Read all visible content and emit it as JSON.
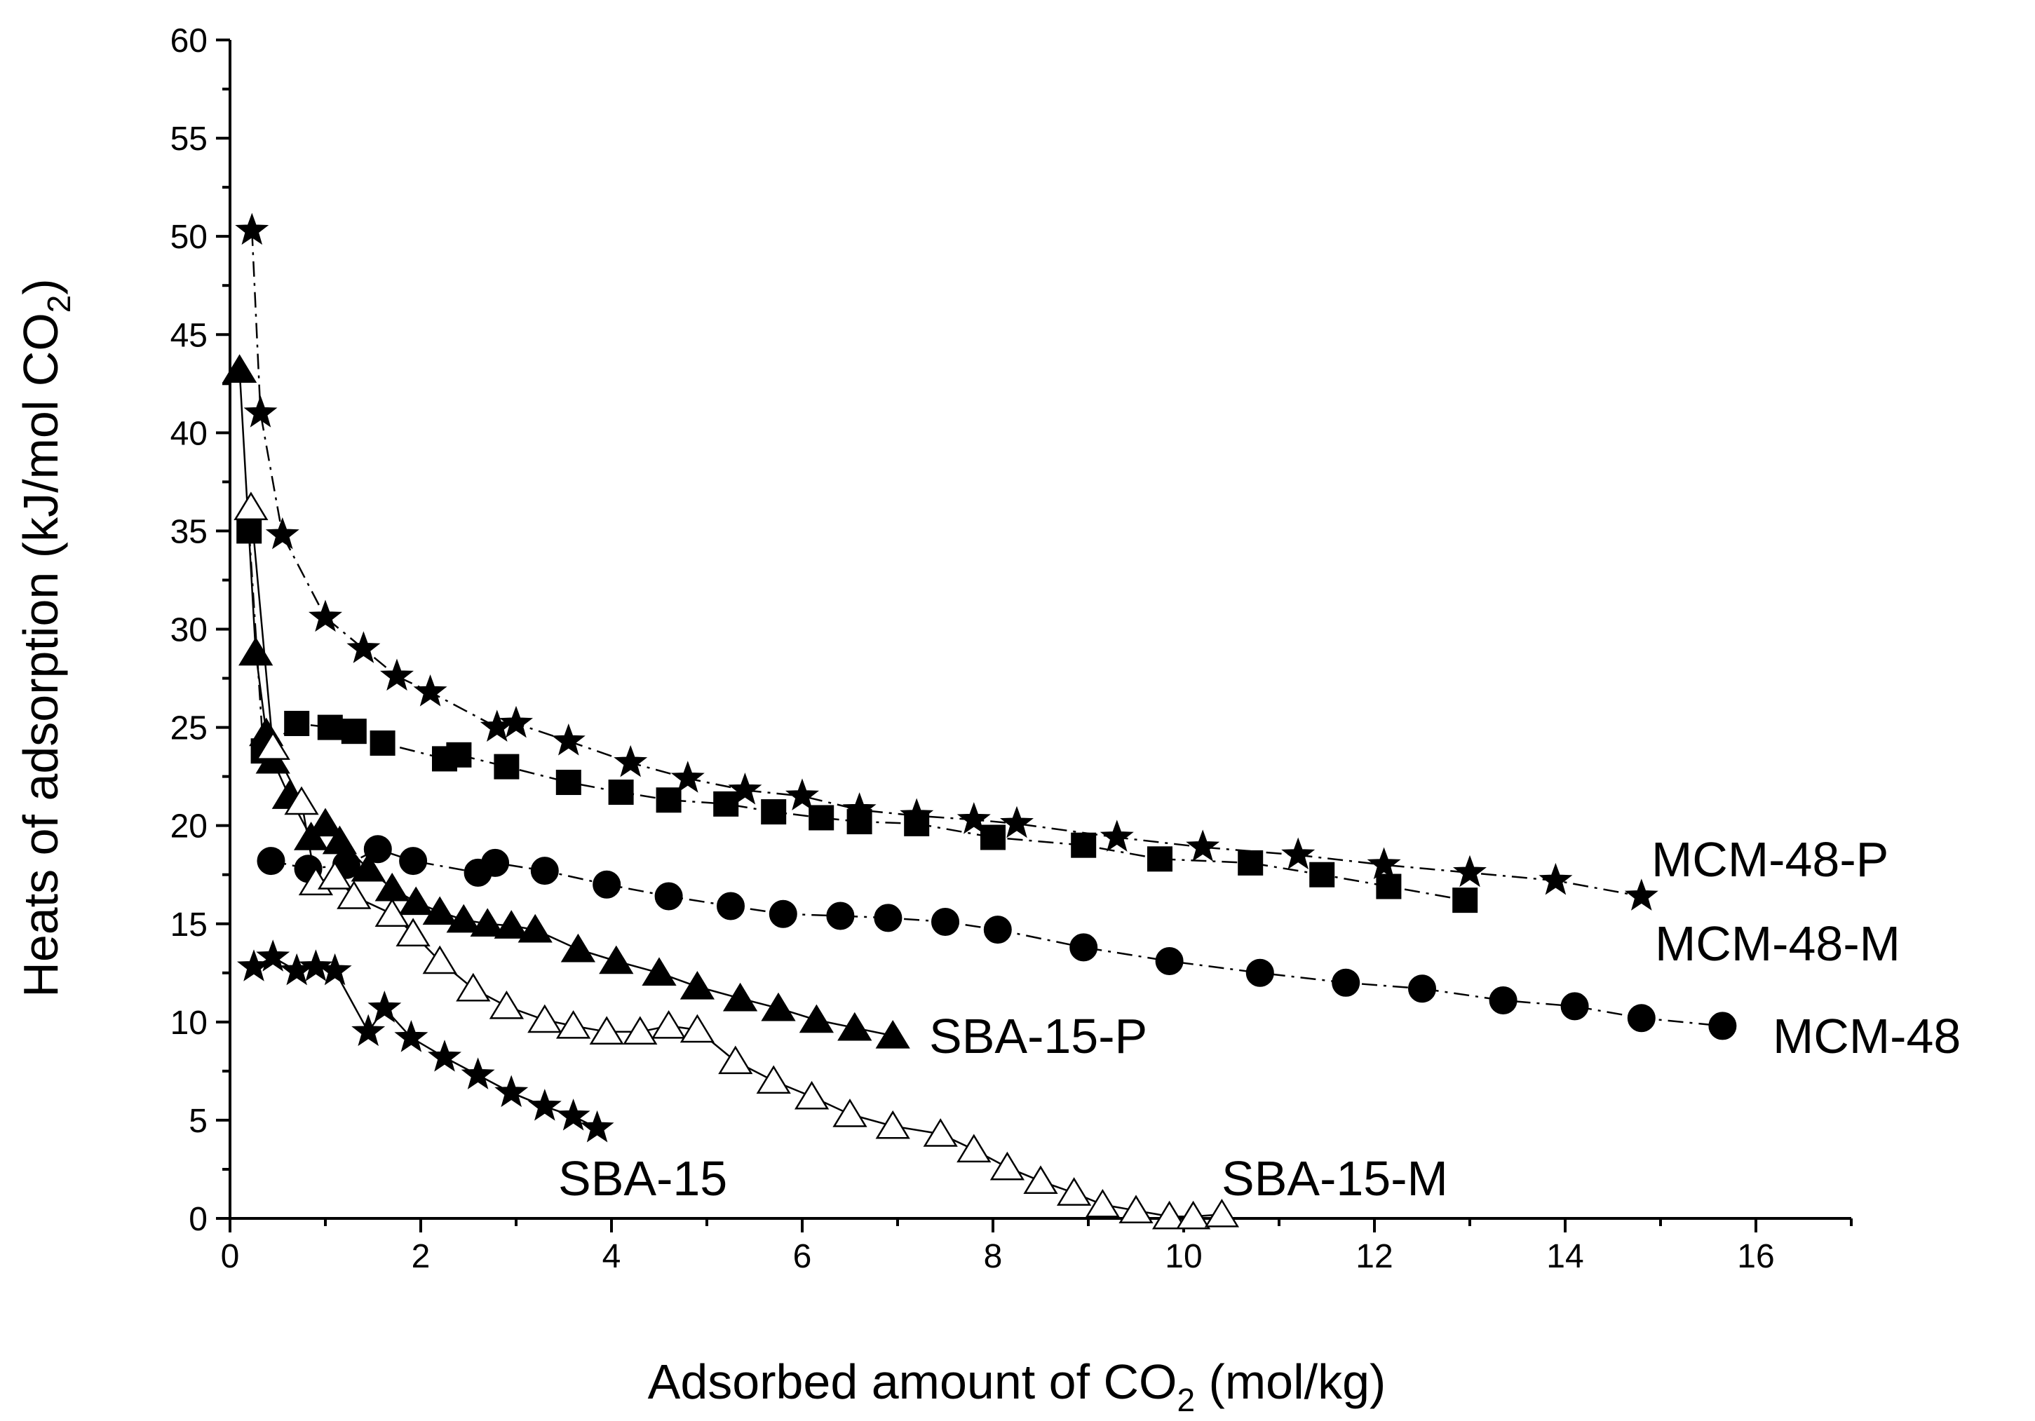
{
  "chart_data": {
    "type": "scatter",
    "xlabel": {
      "prefix": "Adsorbed amount of CO",
      "sub": "2",
      "suffix": " (mol/kg)"
    },
    "ylabel": {
      "prefix": "Heats of adsorption (kJ/mol CO",
      "sub": "2",
      "suffix": ")"
    },
    "xlim": [
      0,
      17
    ],
    "ylim": [
      0,
      60
    ],
    "xticks": [
      0,
      2,
      4,
      6,
      8,
      10,
      12,
      14,
      16
    ],
    "yticks": [
      0,
      5,
      10,
      15,
      20,
      25,
      30,
      35,
      40,
      45,
      50,
      55,
      60
    ],
    "grid": false,
    "series": [
      {
        "name": "MCM-48-P",
        "label": "MCM-48-P",
        "marker": "star",
        "fill": "black",
        "line": "dashdot",
        "x": [
          0.23,
          0.32,
          0.55,
          1.0,
          1.4,
          1.75,
          2.1,
          2.8,
          3.0,
          3.55,
          4.2,
          4.8,
          5.4,
          6.0,
          6.6,
          7.2,
          7.8,
          8.25,
          9.3,
          10.2,
          11.2,
          12.1,
          13.0,
          13.9,
          14.8
        ],
        "y": [
          50.3,
          41.0,
          34.8,
          30.6,
          29.0,
          27.6,
          26.8,
          25.0,
          25.2,
          24.3,
          23.2,
          22.4,
          21.8,
          21.5,
          20.8,
          20.5,
          20.3,
          20.1,
          19.4,
          18.9,
          18.5,
          18.0,
          17.6,
          17.2,
          16.4
        ]
      },
      {
        "name": "MCM-48-M",
        "label": "MCM-48-M",
        "marker": "square",
        "fill": "black",
        "line": "dashdot",
        "x": [
          0.2,
          0.35,
          0.7,
          1.05,
          1.3,
          1.6,
          2.25,
          2.4,
          2.9,
          3.55,
          4.1,
          4.6,
          5.2,
          5.7,
          6.2,
          6.6,
          7.2,
          8.0,
          8.95,
          9.75,
          10.7,
          11.45,
          12.15,
          12.95
        ],
        "y": [
          35.0,
          23.8,
          25.2,
          25.0,
          24.8,
          24.2,
          23.4,
          23.6,
          23.0,
          22.2,
          21.7,
          21.3,
          21.1,
          20.7,
          20.4,
          20.2,
          20.1,
          19.4,
          19.0,
          18.3,
          18.1,
          17.5,
          16.9,
          16.2
        ]
      },
      {
        "name": "MCM-48",
        "label": "MCM-48",
        "marker": "circle",
        "fill": "black",
        "line": "dashdot",
        "x": [
          0.43,
          0.82,
          1.22,
          1.55,
          1.92,
          2.6,
          2.78,
          3.3,
          3.95,
          4.6,
          5.25,
          5.8,
          6.4,
          6.9,
          7.5,
          8.05,
          8.95,
          9.85,
          10.8,
          11.7,
          12.5,
          13.35,
          14.1,
          14.8,
          15.65
        ],
        "y": [
          18.2,
          17.8,
          18.0,
          18.8,
          18.2,
          17.6,
          18.1,
          17.7,
          17.0,
          16.4,
          15.9,
          15.5,
          15.4,
          15.3,
          15.1,
          14.7,
          13.8,
          13.1,
          12.5,
          12.0,
          11.7,
          11.1,
          10.8,
          10.2,
          9.8
        ]
      },
      {
        "name": "SBA-15-P",
        "label": "SBA-15-P",
        "marker": "triangle",
        "fill": "black",
        "line": "solid",
        "x": [
          0.1,
          0.27,
          0.38,
          0.45,
          0.62,
          0.85,
          1.0,
          1.15,
          1.45,
          1.7,
          1.95,
          2.2,
          2.45,
          2.7,
          2.95,
          3.2,
          3.65,
          4.05,
          4.5,
          4.9,
          5.35,
          5.75,
          6.15,
          6.55,
          6.95
        ],
        "y": [
          43.2,
          28.8,
          24.7,
          23.3,
          21.5,
          19.4,
          20.1,
          19.2,
          17.8,
          16.8,
          16.1,
          15.6,
          15.2,
          15.0,
          14.9,
          14.7,
          13.7,
          13.1,
          12.5,
          11.8,
          11.2,
          10.7,
          10.1,
          9.7,
          9.3
        ]
      },
      {
        "name": "SBA-15-M",
        "label": "SBA-15-M",
        "marker": "triangle",
        "fill": "white",
        "line": "solid",
        "x": [
          0.22,
          0.45,
          0.75,
          0.9,
          1.1,
          1.3,
          1.7,
          1.92,
          2.2,
          2.55,
          2.9,
          3.3,
          3.6,
          3.95,
          4.3,
          4.6,
          4.9,
          5.3,
          5.7,
          6.1,
          6.5,
          6.95,
          7.45,
          7.8,
          8.15,
          8.5,
          8.85,
          9.15,
          9.5,
          9.85,
          10.1,
          10.4
        ],
        "y": [
          36.2,
          24.0,
          21.2,
          17.1,
          17.4,
          16.4,
          15.5,
          14.5,
          13.1,
          11.7,
          10.8,
          10.1,
          9.8,
          9.5,
          9.5,
          9.8,
          9.6,
          8.0,
          7.0,
          6.2,
          5.3,
          4.7,
          4.3,
          3.5,
          2.6,
          1.9,
          1.3,
          0.7,
          0.4,
          0.1,
          0.1,
          0.2
        ]
      },
      {
        "name": "SBA-15",
        "label": "SBA-15",
        "marker": "star",
        "fill": "black",
        "line": "solid",
        "x": [
          0.25,
          0.45,
          0.7,
          0.9,
          1.1,
          1.45,
          1.62,
          1.9,
          2.25,
          2.6,
          2.95,
          3.3,
          3.6,
          3.85
        ],
        "y": [
          12.8,
          13.3,
          12.6,
          12.8,
          12.6,
          9.5,
          10.7,
          9.2,
          8.2,
          7.3,
          6.4,
          5.7,
          5.2,
          4.6
        ]
      }
    ]
  }
}
